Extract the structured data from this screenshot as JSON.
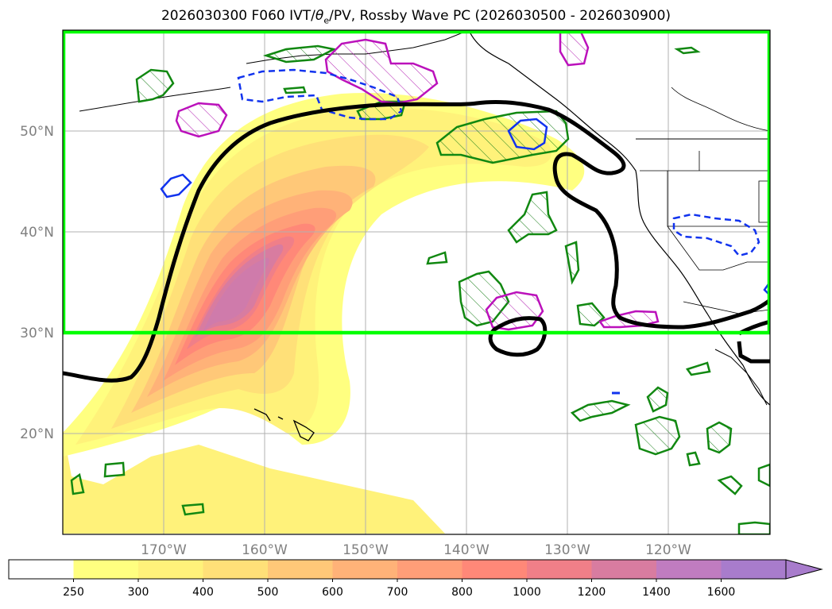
{
  "title": {
    "prefix": "2026030300 F060 IVT/",
    "theta": "θ",
    "sub": "e",
    "suffix": "/PV, Rossby Wave PC (2026030500 - 2026030900)"
  },
  "map": {
    "lat_labels": [
      "50°N",
      "40°N",
      "30°N",
      "20°N"
    ],
    "lat_values": [
      50,
      40,
      30,
      20
    ],
    "lon_labels": [
      "170°W",
      "160°W",
      "150°W",
      "140°W",
      "130°W",
      "120°W"
    ],
    "lon_values": [
      -170,
      -160,
      -150,
      -140,
      -130,
      -120
    ],
    "extent": {
      "lon_min": -180,
      "lon_max": -110,
      "lat_min": 10,
      "lat_max": 60
    },
    "box": {
      "lon_min": -180,
      "lon_max": -110,
      "lat_min": 30,
      "lat_max": 60,
      "color": "#00ff00"
    }
  },
  "colorbar": {
    "ticks": [
      "250",
      "300",
      "400",
      "500",
      "600",
      "700",
      "800",
      "1000",
      "1200",
      "1400",
      "1600"
    ],
    "colors": [
      "#ffffff",
      "#ffff80",
      "#fff27a",
      "#ffe078",
      "#ffc878",
      "#ffb278",
      "#ff9e78",
      "#ff8878",
      "#f07f88",
      "#d87ca0",
      "#c07cc0",
      "#a87ccc"
    ]
  }
}
